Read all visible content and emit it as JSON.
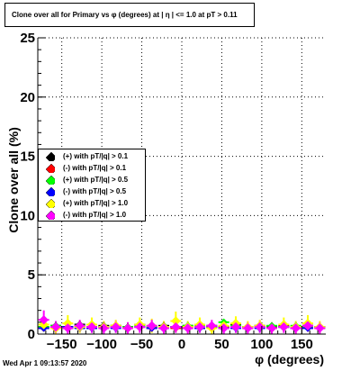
{
  "chart_data": {
    "type": "scatter",
    "title": "Clone  over all for Primary vs φ (degrees) at | η | <= 1.0 at pT > 0.11",
    "xlabel": "φ (degrees)",
    "ylabel": "Clone  over all (%)",
    "xlim": [
      -180,
      180
    ],
    "ylim": [
      0,
      25
    ],
    "x_ticks": [
      -150,
      -100,
      -50,
      0,
      50,
      100,
      150
    ],
    "x_tick_labels": [
      "−150",
      "−100",
      "−50",
      "0",
      "50",
      "100",
      "150"
    ],
    "y_ticks": [
      0,
      5,
      10,
      15,
      20,
      25
    ],
    "y_tick_labels": [
      "0",
      "5",
      "10",
      "15",
      "20",
      "25"
    ],
    "grid": true,
    "legend_position": "left, mid-height",
    "series": [
      {
        "name": "(+) with pT/|q| > 0.1",
        "color": "#000000",
        "x": [
          -172.5,
          -157.5,
          -142.5,
          -127.5,
          -112.5,
          -97.5,
          -82.5,
          -67.5,
          -52.5,
          -37.5,
          -22.5,
          -7.5,
          7.5,
          22.5,
          37.5,
          52.5,
          67.5,
          82.5,
          97.5,
          112.5,
          127.5,
          142.5,
          157.5,
          172.5
        ],
        "y": [
          0.6,
          0.7,
          0.6,
          0.8,
          0.6,
          0.7,
          0.7,
          0.6,
          0.8,
          0.6,
          0.7,
          0.6,
          0.7,
          0.6,
          0.7,
          0.6,
          0.8,
          0.6,
          0.7,
          0.6,
          0.7,
          0.6,
          0.7,
          0.6
        ]
      },
      {
        "name": "(-) with pT/|q| > 0.1",
        "color": "#ff0000",
        "x": [
          -172.5,
          -157.5,
          -142.5,
          -127.5,
          -112.5,
          -97.5,
          -82.5,
          -67.5,
          -52.5,
          -37.5,
          -22.5,
          -7.5,
          7.5,
          22.5,
          37.5,
          52.5,
          67.5,
          82.5,
          97.5,
          112.5,
          127.5,
          142.5,
          157.5,
          172.5
        ],
        "y": [
          0.5,
          0.6,
          0.5,
          0.6,
          0.5,
          0.6,
          0.6,
          0.5,
          0.6,
          0.5,
          0.6,
          0.5,
          0.6,
          0.5,
          0.6,
          0.5,
          0.6,
          0.5,
          0.6,
          0.5,
          0.6,
          0.5,
          0.6,
          0.5
        ]
      },
      {
        "name": "(+) with pT/|q| > 0.5",
        "color": "#00ff00",
        "x": [
          -172.5,
          -157.5,
          -142.5,
          -127.5,
          -112.5,
          -97.5,
          -82.5,
          -67.5,
          -52.5,
          -37.5,
          -22.5,
          -7.5,
          7.5,
          22.5,
          37.5,
          52.5,
          67.5,
          82.5,
          97.5,
          112.5,
          127.5,
          142.5,
          157.5,
          172.5
        ],
        "y": [
          0.6,
          0.7,
          0.5,
          0.7,
          0.6,
          0.6,
          0.7,
          0.6,
          0.7,
          0.6,
          0.6,
          0.6,
          0.7,
          0.7,
          0.6,
          1.0,
          0.7,
          0.6,
          0.6,
          0.7,
          0.6,
          0.7,
          0.6,
          0.6
        ]
      },
      {
        "name": "(-) with pT/|q| > 0.5",
        "color": "#0000ff",
        "x": [
          -172.5,
          -157.5,
          -142.5,
          -127.5,
          -112.5,
          -97.5,
          -82.5,
          -67.5,
          -52.5,
          -37.5,
          -22.5,
          -7.5,
          7.5,
          22.5,
          37.5,
          52.5,
          67.5,
          82.5,
          97.5,
          112.5,
          127.5,
          142.5,
          157.5,
          172.5
        ],
        "y": [
          0.5,
          0.5,
          0.6,
          0.5,
          0.5,
          0.6,
          0.5,
          0.5,
          0.6,
          0.5,
          0.5,
          0.6,
          0.5,
          0.5,
          0.6,
          0.5,
          0.5,
          0.6,
          0.5,
          0.5,
          0.6,
          0.5,
          0.5,
          0.6
        ]
      },
      {
        "name": "(+) with pT/|q| > 1.0",
        "color": "#ffff00",
        "x": [
          -172.5,
          -157.5,
          -142.5,
          -127.5,
          -112.5,
          -97.5,
          -82.5,
          -67.5,
          -52.5,
          -37.5,
          -22.5,
          -7.5,
          7.5,
          22.5,
          37.5,
          52.5,
          67.5,
          82.5,
          97.5,
          112.5,
          127.5,
          142.5,
          157.5,
          172.5
        ],
        "y": [
          0.8,
          0.5,
          0.9,
          0.6,
          0.8,
          0.6,
          0.7,
          0.5,
          0.8,
          0.7,
          0.6,
          1.1,
          0.6,
          0.8,
          0.5,
          0.7,
          0.9,
          0.6,
          0.7,
          0.5,
          0.8,
          0.6,
          0.9,
          0.6
        ],
        "yerr": [
          0.6,
          0.5,
          0.7,
          0.5,
          0.6,
          0.5,
          0.5,
          0.5,
          0.6,
          0.6,
          0.5,
          0.8,
          0.5,
          0.6,
          0.5,
          0.5,
          0.6,
          0.5,
          0.5,
          0.5,
          0.6,
          0.5,
          0.7,
          0.5
        ]
      },
      {
        "name": "(-) with pT/|q| > 1.0",
        "color": "#ff00ff",
        "x": [
          -172.5,
          -157.5,
          -142.5,
          -127.5,
          -112.5,
          -97.5,
          -82.5,
          -67.5,
          -52.5,
          -37.5,
          -22.5,
          -7.5,
          7.5,
          22.5,
          37.5,
          52.5,
          67.5,
          82.5,
          97.5,
          112.5,
          127.5,
          142.5,
          157.5,
          172.5
        ],
        "y": [
          1.2,
          0.6,
          0.5,
          0.7,
          0.6,
          0.5,
          0.6,
          0.5,
          0.6,
          0.7,
          0.5,
          0.6,
          0.5,
          0.6,
          0.7,
          0.5,
          0.6,
          0.5,
          0.6,
          0.5,
          0.6,
          0.5,
          0.7,
          0.5
        ],
        "yerr": [
          0.8,
          0.5,
          0.5,
          0.5,
          0.5,
          0.5,
          0.5,
          0.5,
          0.5,
          0.5,
          0.5,
          0.5,
          0.5,
          0.5,
          0.5,
          0.5,
          0.5,
          0.5,
          0.5,
          0.5,
          0.5,
          0.5,
          0.5,
          0.5
        ]
      }
    ]
  },
  "footer": {
    "timestamp": "Wed Apr  1 09:13:57 2020"
  }
}
